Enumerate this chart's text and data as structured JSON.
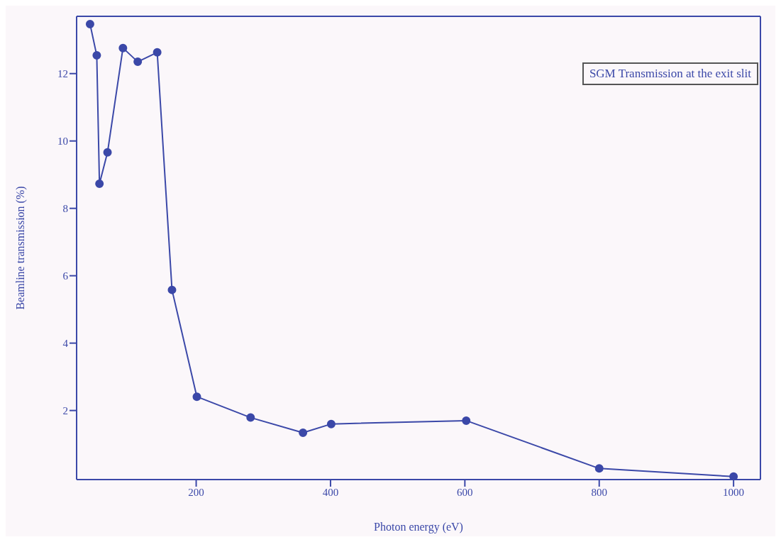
{
  "chart_data": {
    "type": "line",
    "xlabel": "Photon energy (eV)",
    "ylabel": "Beamline transmission (%)",
    "annotations": [
      "SGM Transmission at the exit slit"
    ],
    "x": [
      42,
      52,
      56,
      68,
      91,
      113,
      142,
      164,
      201,
      281,
      359,
      401,
      602,
      800,
      1000
    ],
    "series": [
      {
        "color": "#3b48a8",
        "values": [
          13.47,
          12.54,
          8.73,
          9.66,
          12.76,
          12.35,
          12.63,
          5.58,
          2.41,
          1.79,
          1.34,
          1.6,
          1.7,
          0.28,
          0.04
        ]
      }
    ],
    "xlim": [
      22,
      1040
    ],
    "xticks": [
      200,
      400,
      600,
      800,
      1000
    ],
    "ylim": [
      -0.05,
      13.7
    ],
    "yticks": [
      2,
      4,
      6,
      8,
      10,
      12
    ],
    "grid": false,
    "legend": false,
    "marker": "circle",
    "line_style": "solid"
  }
}
